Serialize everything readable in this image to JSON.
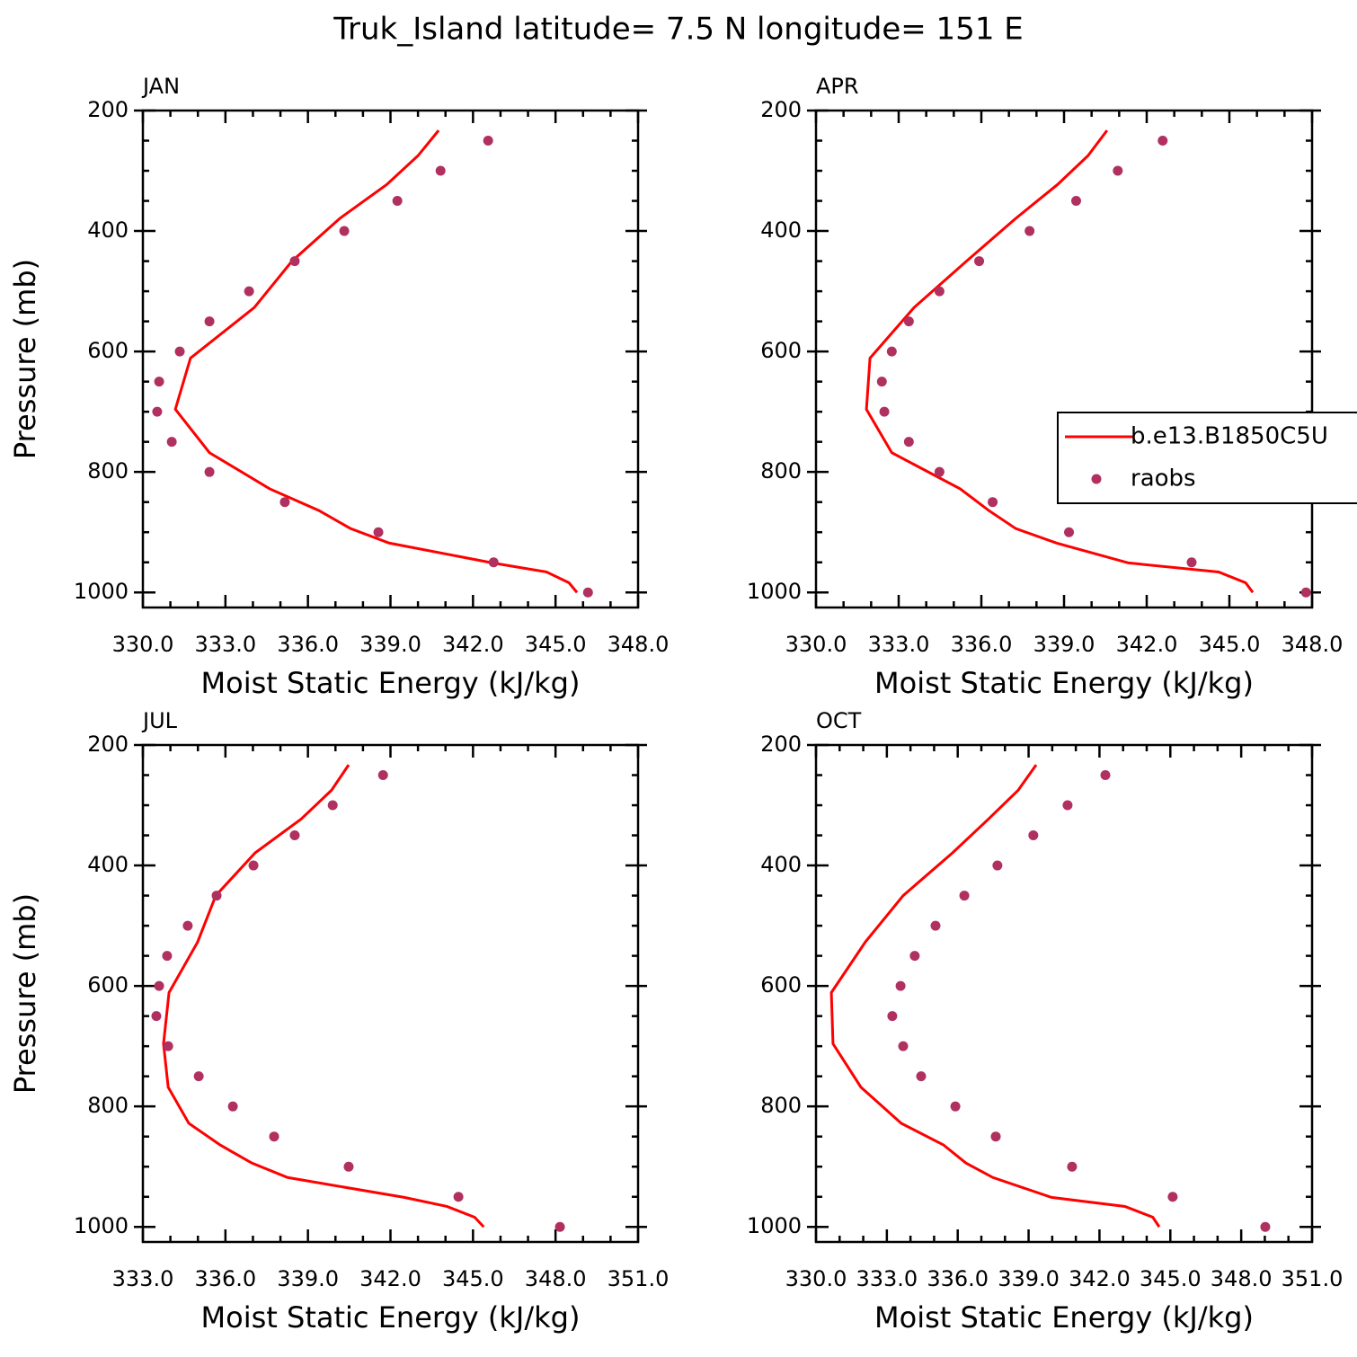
{
  "title": "Truk_Island  latitude= 7.5 N longitude= 151 E",
  "chart_data": [
    {
      "type": "line",
      "title": "JAN",
      "xlabel": "Moist Static Energy (kJ/kg)",
      "ylabel": "Pressure (mb)",
      "xlim": [
        330,
        348
      ],
      "xticks": [
        {
          "value": 330,
          "label": "330.0"
        },
        {
          "value": 333,
          "label": "333.0"
        },
        {
          "value": 336,
          "label": "336.0"
        },
        {
          "value": 339,
          "label": "339.0"
        },
        {
          "value": 342,
          "label": "342.0"
        },
        {
          "value": 345,
          "label": "345.0"
        },
        {
          "value": 348,
          "label": "348.0"
        }
      ],
      "xminorticks": [
        331,
        332,
        334,
        335,
        337,
        338,
        340,
        341,
        343,
        344,
        346,
        347
      ],
      "ylim": [
        1025,
        200
      ],
      "yticks": [
        200,
        400,
        600,
        800,
        1000
      ],
      "yminorticks": [
        250,
        300,
        350,
        450,
        500,
        550,
        650,
        700,
        750,
        850,
        900,
        950
      ],
      "series": [
        {
          "name": "b.e13.B1850C5U",
          "mode": "line",
          "color": "#ff0000",
          "x": [
            340.75,
            340.0,
            338.86,
            337.16,
            335.42,
            334.05,
            331.73,
            331.18,
            332.42,
            334.61,
            336.4,
            337.55,
            338.95,
            342.71,
            344.67,
            345.49,
            345.78
          ],
          "y": [
            233,
            275,
            323,
            379,
            450,
            527,
            611,
            696,
            768,
            828,
            864,
            894,
            918,
            951,
            966,
            984,
            1000
          ]
        },
        {
          "name": "raobs",
          "mode": "markers",
          "color": "#b03060",
          "x": [
            342.55,
            340.82,
            339.25,
            337.32,
            335.52,
            333.86,
            332.42,
            331.34,
            330.59,
            330.52,
            331.05,
            332.42,
            335.16,
            338.56,
            342.75,
            346.18
          ],
          "y": [
            250,
            300,
            350,
            400,
            450,
            500,
            550,
            600,
            650,
            700,
            750,
            800,
            850,
            900,
            950,
            1000
          ]
        }
      ]
    },
    {
      "type": "line",
      "title": "APR",
      "xlabel": "Moist Static Energy (kJ/kg)",
      "legend": "right",
      "xlim": [
        330,
        348
      ],
      "xticks": [
        {
          "value": 330,
          "label": "330.0"
        },
        {
          "value": 333,
          "label": "333.0"
        },
        {
          "value": 336,
          "label": "336.0"
        },
        {
          "value": 339,
          "label": "339.0"
        },
        {
          "value": 342,
          "label": "342.0"
        },
        {
          "value": 345,
          "label": "345.0"
        },
        {
          "value": 348,
          "label": "348.0"
        }
      ],
      "xminorticks": [
        331,
        332,
        334,
        335,
        337,
        338,
        340,
        341,
        343,
        344,
        346,
        347
      ],
      "ylim": [
        1025,
        200
      ],
      "yticks": [
        200,
        400,
        600,
        800,
        1000
      ],
      "yminorticks": [
        250,
        300,
        350,
        450,
        500,
        550,
        650,
        700,
        750,
        850,
        900,
        950
      ],
      "series": [
        {
          "name": "b.e13.B1850C5U",
          "mode": "line",
          "color": "#ff0000",
          "x": [
            340.56,
            339.87,
            338.76,
            337.25,
            335.46,
            333.56,
            331.96,
            331.83,
            332.75,
            335.23,
            336.27,
            337.25,
            338.73,
            341.34,
            344.61,
            345.59,
            345.85
          ],
          "y": [
            233,
            275,
            323,
            379,
            450,
            527,
            611,
            696,
            768,
            828,
            864,
            894,
            918,
            951,
            966,
            984,
            1000
          ]
        },
        {
          "name": "raobs",
          "mode": "markers",
          "color": "#b03060",
          "x": [
            342.58,
            340.95,
            339.44,
            337.75,
            335.92,
            334.48,
            333.37,
            332.75,
            332.39,
            332.48,
            333.37,
            334.48,
            336.41,
            339.18,
            343.63,
            347.78
          ],
          "y": [
            250,
            300,
            350,
            400,
            450,
            500,
            550,
            600,
            650,
            700,
            750,
            800,
            850,
            900,
            950,
            1000
          ]
        }
      ]
    },
    {
      "type": "line",
      "title": "JUL",
      "xlabel": "Moist Static Energy (kJ/kg)",
      "ylabel": "Pressure (mb)",
      "xlim": [
        333,
        351
      ],
      "xticks": [
        {
          "value": 333,
          "label": "333.0"
        },
        {
          "value": 336,
          "label": "336.0"
        },
        {
          "value": 339,
          "label": "339.0"
        },
        {
          "value": 342,
          "label": "342.0"
        },
        {
          "value": 345,
          "label": "345.0"
        },
        {
          "value": 348,
          "label": "348.0"
        },
        {
          "value": 351,
          "label": "351.0"
        }
      ],
      "xminorticks": [
        334,
        335,
        337,
        338,
        340,
        341,
        343,
        344,
        346,
        347,
        349,
        350
      ],
      "ylim": [
        1025,
        200
      ],
      "yticks": [
        200,
        400,
        600,
        800,
        1000
      ],
      "yminorticks": [
        250,
        300,
        350,
        450,
        500,
        550,
        650,
        700,
        750,
        850,
        900,
        950
      ],
      "series": [
        {
          "name": "b.e13.B1850C5U",
          "mode": "line",
          "color": "#ff0000",
          "x": [
            340.48,
            339.86,
            338.75,
            337.08,
            335.65,
            334.99,
            333.95,
            333.75,
            333.92,
            334.67,
            335.81,
            336.96,
            338.26,
            342.5,
            344.05,
            345.06,
            345.39
          ],
          "y": [
            233,
            275,
            323,
            379,
            450,
            527,
            611,
            696,
            768,
            828,
            864,
            894,
            918,
            951,
            966,
            984,
            1000
          ]
        },
        {
          "name": "raobs",
          "mode": "markers",
          "color": "#b03060",
          "x": [
            341.73,
            339.9,
            338.52,
            337.02,
            335.68,
            334.63,
            333.88,
            333.59,
            333.49,
            333.92,
            335.03,
            336.27,
            337.77,
            340.48,
            344.47,
            348.16
          ],
          "y": [
            250,
            300,
            350,
            400,
            450,
            500,
            550,
            600,
            650,
            700,
            750,
            800,
            850,
            900,
            950,
            1000
          ]
        }
      ]
    },
    {
      "type": "line",
      "title": "OCT",
      "xlabel": "Moist Static Energy (kJ/kg)",
      "xlim": [
        330,
        351
      ],
      "xticks": [
        {
          "value": 330,
          "label": "330.0"
        },
        {
          "value": 333,
          "label": "333.0"
        },
        {
          "value": 336,
          "label": "336.0"
        },
        {
          "value": 339,
          "label": "339.0"
        },
        {
          "value": 342,
          "label": "342.0"
        },
        {
          "value": 345,
          "label": "345.0"
        },
        {
          "value": 348,
          "label": "348.0"
        },
        {
          "value": 351,
          "label": "351.0"
        }
      ],
      "xminorticks": [
        331,
        332,
        334,
        335,
        337,
        338,
        340,
        341,
        343,
        344,
        346,
        347,
        349,
        350
      ],
      "ylim": [
        1025,
        200
      ],
      "yticks": [
        200,
        400,
        600,
        800,
        1000
      ],
      "yminorticks": [
        250,
        300,
        350,
        450,
        500,
        550,
        650,
        700,
        750,
        850,
        900,
        950
      ],
      "series": [
        {
          "name": "b.e13.B1850C5U",
          "mode": "line",
          "color": "#ff0000",
          "x": [
            339.32,
            338.56,
            337.3,
            335.78,
            333.69,
            332.09,
            330.65,
            330.72,
            331.9,
            333.61,
            335.4,
            336.35,
            337.49,
            339.97,
            343.08,
            344.26,
            344.53
          ],
          "y": [
            233,
            275,
            323,
            379,
            450,
            527,
            611,
            696,
            768,
            828,
            864,
            894,
            918,
            951,
            966,
            984,
            1000
          ]
        },
        {
          "name": "raobs",
          "mode": "markers",
          "color": "#b03060",
          "x": [
            342.25,
            340.65,
            339.2,
            337.68,
            336.28,
            335.06,
            334.18,
            333.58,
            333.23,
            333.69,
            334.45,
            335.9,
            337.61,
            340.84,
            345.1,
            349.02
          ],
          "y": [
            250,
            300,
            350,
            400,
            450,
            500,
            550,
            600,
            650,
            700,
            750,
            800,
            850,
            900,
            950,
            1000
          ]
        }
      ]
    }
  ]
}
